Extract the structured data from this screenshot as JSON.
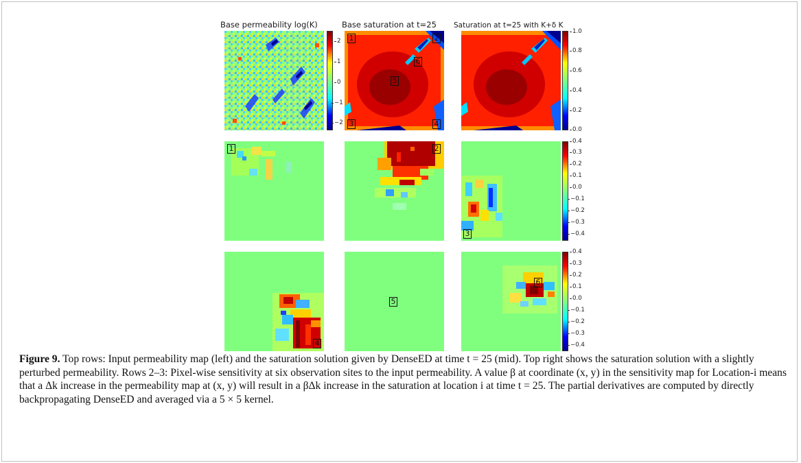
{
  "figure": {
    "titles": {
      "perm": "Base permeability log(K)",
      "sat": "Base saturation at t=25",
      "sat_pert": "Saturation at t=25 with K+δ K"
    },
    "colorbars": {
      "perm": [
        "2",
        "1",
        "0",
        "−1",
        "−2"
      ],
      "sat": [
        "1.0",
        "0.8",
        "0.6",
        "0.4",
        "0.2",
        "0.0"
      ],
      "sens1": [
        "0.4",
        "0.3",
        "0.2",
        "0.1",
        "0.0",
        "−0.1",
        "−0.2",
        "−0.3",
        "−0.4"
      ],
      "sens2": [
        "0.4",
        "0.3",
        "0.2",
        "0.1",
        "0.0",
        "−0.1",
        "−0.2",
        "−0.3",
        "−0.4"
      ]
    },
    "locations": [
      "1",
      "2",
      "3",
      "4",
      "5",
      "6"
    ],
    "colors": {
      "jet_dark_blue": "#00008f",
      "jet_cyan": "#00ffff",
      "jet_green": "#80ff7f",
      "jet_yellow": "#ffff00",
      "jet_red": "#ff0000",
      "jet_dark_red": "#800000"
    }
  },
  "caption": {
    "label": "Figure 9.",
    "text": " Top rows: Input permeability map (left) and the saturation solution given by DenseED at time t = 25 (mid). Top right shows the saturation solution with a slightly perturbed permeability. Rows 2–3: Pixel-wise sensitivity at six observation sites to the input permeability. A value β at coordinate (x, y) in the sensitivity map for Location-i means that a Δk increase in the permeability map at (x, y) will result in a βΔk increase in the saturation at location i at time t = 25. The partial derivatives are computed by directly backpropagating DenseED and averaged via a 5 × 5 kernel."
  }
}
